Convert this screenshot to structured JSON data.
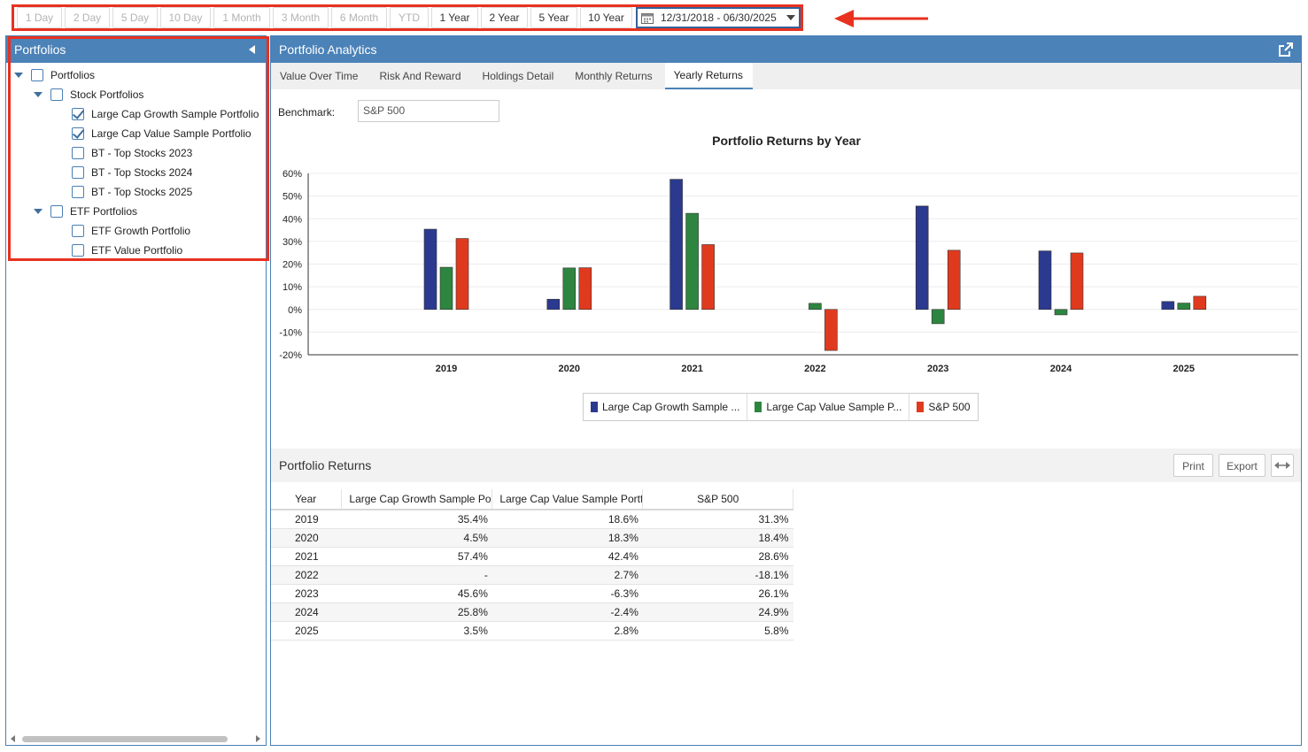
{
  "period_bar": {
    "buttons": [
      {
        "label": "1 Day",
        "enabled": false
      },
      {
        "label": "2 Day",
        "enabled": false
      },
      {
        "label": "5 Day",
        "enabled": false
      },
      {
        "label": "10 Day",
        "enabled": false
      },
      {
        "label": "1 Month",
        "enabled": false
      },
      {
        "label": "3 Month",
        "enabled": false
      },
      {
        "label": "6 Month",
        "enabled": false
      },
      {
        "label": "YTD",
        "enabled": false
      },
      {
        "label": "1 Year",
        "enabled": true
      },
      {
        "label": "2 Year",
        "enabled": true
      },
      {
        "label": "5 Year",
        "enabled": true
      },
      {
        "label": "10 Year",
        "enabled": true
      }
    ],
    "date_range": "12/31/2018 - 06/30/2025"
  },
  "left_panel": {
    "title": "Portfolios",
    "tree": [
      {
        "label": "Portfolios",
        "level": 0,
        "expandable": true,
        "checked": false
      },
      {
        "label": "Stock Portfolios",
        "level": 1,
        "expandable": true,
        "checked": false
      },
      {
        "label": "Large Cap Growth Sample Portfolio",
        "level": 2,
        "expandable": false,
        "checked": true
      },
      {
        "label": "Large Cap Value Sample Portfolio",
        "level": 2,
        "expandable": false,
        "checked": true
      },
      {
        "label": "BT - Top Stocks 2023",
        "level": 2,
        "expandable": false,
        "checked": false
      },
      {
        "label": "BT - Top Stocks 2024",
        "level": 2,
        "expandable": false,
        "checked": false
      },
      {
        "label": "BT - Top Stocks 2025",
        "level": 2,
        "expandable": false,
        "checked": false
      },
      {
        "label": "ETF Portfolios",
        "level": 1,
        "expandable": true,
        "checked": false
      },
      {
        "label": "ETF Growth Portfolio",
        "level": 2,
        "expandable": false,
        "checked": false
      },
      {
        "label": "ETF Value Portfolio",
        "level": 2,
        "expandable": false,
        "checked": false
      }
    ]
  },
  "right_panel": {
    "title": "Portfolio Analytics",
    "tabs": [
      {
        "label": "Value Over Time",
        "active": false
      },
      {
        "label": "Risk And Reward",
        "active": false
      },
      {
        "label": "Holdings Detail",
        "active": false
      },
      {
        "label": "Monthly Returns",
        "active": false
      },
      {
        "label": "Yearly Returns",
        "active": true
      }
    ],
    "benchmark_label": "Benchmark:",
    "benchmark_value": "S&P 500",
    "returns_title": "Portfolio Returns",
    "print_label": "Print",
    "export_label": "Export"
  },
  "chart_data": {
    "type": "bar",
    "title": "Portfolio Returns by Year",
    "categories": [
      "2019",
      "2020",
      "2021",
      "2022",
      "2023",
      "2024",
      "2025"
    ],
    "series": [
      {
        "name": "Large Cap Growth Sample ...",
        "color": "#2b3a8f",
        "values": [
          35.4,
          4.5,
          57.4,
          null,
          45.6,
          25.8,
          3.5
        ]
      },
      {
        "name": "Large Cap Value Sample P...",
        "color": "#2e8540",
        "values": [
          18.6,
          18.3,
          42.4,
          2.7,
          -6.3,
          -2.4,
          2.8
        ]
      },
      {
        "name": "S&P 500",
        "color": "#e03a1e",
        "values": [
          31.3,
          18.4,
          28.6,
          -18.1,
          26.1,
          24.9,
          5.8
        ]
      }
    ],
    "ylim": [
      -20,
      60
    ],
    "yticks": [
      "60%",
      "50%",
      "40%",
      "30%",
      "20%",
      "10%",
      "0%",
      "-10%",
      "-20%"
    ],
    "grid": true,
    "legend": "bottom"
  },
  "table": {
    "headers": [
      "Year",
      "Large Cap Growth Sample Po",
      "Large Cap Value Sample Portf",
      "S&P 500"
    ],
    "rows": [
      [
        "2019",
        "35.4%",
        "18.6%",
        "31.3%"
      ],
      [
        "2020",
        "4.5%",
        "18.3%",
        "18.4%"
      ],
      [
        "2021",
        "57.4%",
        "42.4%",
        "28.6%"
      ],
      [
        "2022",
        "-",
        "2.7%",
        "-18.1%"
      ],
      [
        "2023",
        "45.6%",
        "-6.3%",
        "26.1%"
      ],
      [
        "2024",
        "25.8%",
        "-2.4%",
        "24.9%"
      ],
      [
        "2025",
        "3.5%",
        "2.8%",
        "5.8%"
      ]
    ]
  }
}
